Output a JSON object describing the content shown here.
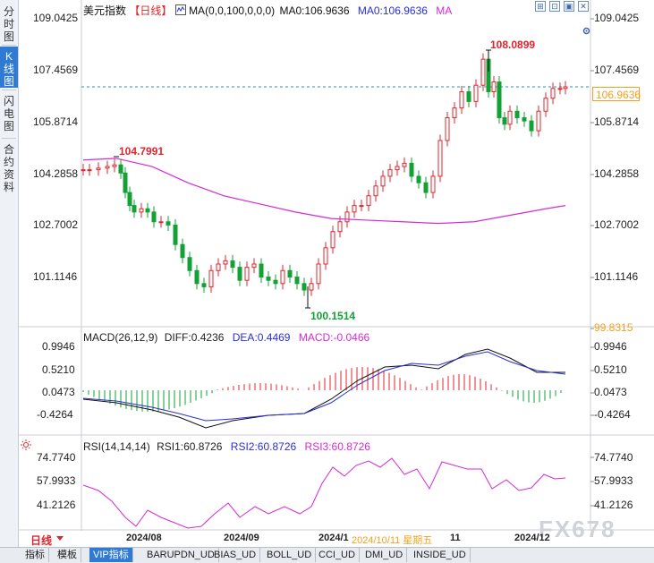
{
  "side_tabs": [
    {
      "label": "分时图",
      "active": false
    },
    {
      "label": "K线图",
      "active": true
    },
    {
      "label": "闪电图",
      "active": false
    },
    {
      "label": "合约资料",
      "active": false
    }
  ],
  "header": {
    "symbol": "美元指数",
    "period": "【日线】",
    "ma_formula": "MA(0,0,100,0,0,0)",
    "ma0_a": "MA0:106.9636",
    "ma0_b": "MA0:106.9636",
    "ma_c": "MA"
  },
  "price_axis": {
    "labels": [
      "109.0425",
      "107.4569",
      "105.8714",
      "104.2858",
      "102.7002",
      "101.1146",
      "99.8315"
    ],
    "current_price": "106.9636"
  },
  "annotations": {
    "high": "108.0899",
    "low": "100.1514",
    "left_high": "104.7991"
  },
  "macd": {
    "title": "MACD(26,12,9)",
    "diff": "DIFF:0.4236",
    "dea": "DEA:0.4469",
    "macd": "MACD:-0.0466",
    "labels": [
      "0.9946",
      "0.5210",
      "0.0473",
      "-0.4264"
    ]
  },
  "rsi": {
    "title": "RSI(14,14,14)",
    "rsi1": "RSI1:60.8726",
    "rsi2": "RSI2:60.8726",
    "rsi3": "RSI3:60.8726",
    "labels": [
      "74.7740",
      "57.9933",
      "41.2126"
    ]
  },
  "x_axis": {
    "period_label": "日线",
    "labels": [
      "2024/08",
      "2024/09",
      "2024/1",
      "2024/10/11 星期五",
      "11",
      "2024/12"
    ]
  },
  "bottom_tabs": [
    "指标",
    "模板",
    "VIP指标",
    "BARUPDN_UD",
    "BIAS_UD",
    "BOLL_UD",
    "CCI_UD",
    "DMI_UD",
    "INSIDE_UD"
  ],
  "watermark": "FX678",
  "colors": {
    "up": "#e0242c",
    "down": "#12a134",
    "ma": "#d52ad6",
    "accent": "#2f7bd3",
    "dea": "#2a2dd6",
    "orange": "#f5a01c"
  },
  "icons": [
    "checkbox-icon",
    "gear-icon",
    "expand-icon",
    "fullscreen-icon",
    "restore-icon",
    "close-icon",
    "sun-icon"
  ]
}
